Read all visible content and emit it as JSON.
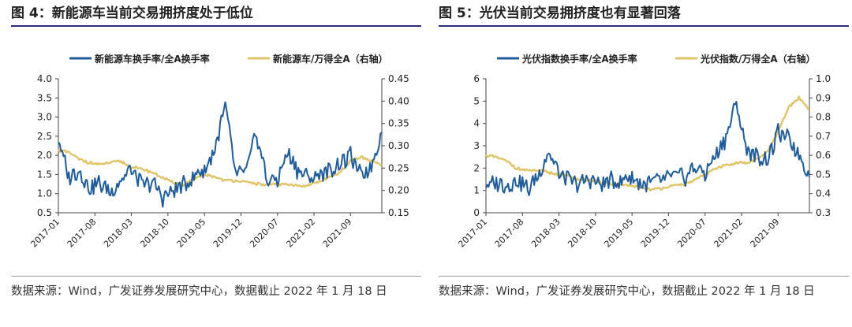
{
  "charts": [
    {
      "title": "图 4：新能源车当前交易拥挤度处于低位",
      "source": "数据来源：Wind，广发证券发展研究中心，数据截止 2022 年 1 月 18 日",
      "chart_data": {
        "type": "line",
        "title": "图 4：新能源车当前交易拥挤度处于低位",
        "xlabel": "",
        "ylabel": "",
        "y2label": "",
        "x_ticks": [
          "2017-01",
          "2017-08",
          "2018-03",
          "2018-10",
          "2019-05",
          "2019-12",
          "2020-07",
          "2021-02",
          "2021-09"
        ],
        "ylim": [
          0.5,
          4.0
        ],
        "y_ticks": [
          0.5,
          1.0,
          1.5,
          2.0,
          2.5,
          3.0,
          3.5,
          4.0
        ],
        "y2lim": [
          0.15,
          0.45
        ],
        "y2_ticks": [
          0.15,
          0.2,
          0.25,
          0.3,
          0.35,
          0.4,
          0.45
        ],
        "series": [
          {
            "name": "新能源车换手率/全A换手率",
            "axis": "left",
            "color": "#1f5c99",
            "t": [
              0,
              2,
              4,
              6,
              8,
              10,
              12,
              14,
              16,
              18,
              20,
              22,
              24,
              26,
              28,
              30,
              32,
              34,
              36,
              38,
              40,
              42,
              44,
              46,
              48,
              50,
              52,
              54,
              56,
              58,
              60,
              62
            ],
            "values": [
              2.4,
              1.4,
              1.6,
              1.1,
              1.3,
              1.0,
              1.4,
              1.6,
              1.2,
              1.3,
              0.9,
              1.1,
              1.2,
              1.5,
              1.6,
              2.2,
              3.3,
              1.5,
              1.6,
              2.6,
              1.3,
              1.4,
              2.1,
              1.6,
              1.4,
              1.5,
              1.6,
              1.8,
              2.0,
              1.4,
              1.7,
              2.6
            ]
          },
          {
            "name": "新能源车/万得全A（右轴）",
            "axis": "right",
            "color": "#e0c468",
            "t": [
              0,
              2,
              4,
              6,
              8,
              10,
              12,
              14,
              16,
              18,
              20,
              22,
              24,
              26,
              28,
              30,
              32,
              34,
              36,
              38,
              40,
              42,
              44,
              46,
              48,
              50,
              52,
              54,
              56,
              58,
              60,
              62
            ],
            "values": [
              0.29,
              0.285,
              0.27,
              0.262,
              0.258,
              0.262,
              0.265,
              0.252,
              0.248,
              0.24,
              0.228,
              0.218,
              0.212,
              0.225,
              0.235,
              0.23,
              0.222,
              0.222,
              0.218,
              0.215,
              0.212,
              0.214,
              0.213,
              0.21,
              0.212,
              0.22,
              0.23,
              0.24,
              0.265,
              0.275,
              0.265,
              0.258
            ]
          }
        ]
      }
    },
    {
      "title": "图 5：光伏当前交易拥挤度也有显著回落",
      "source": "数据来源：Wind，广发证券发展研究中心，数据截止 2022 年 1 月 18 日",
      "chart_data": {
        "type": "line",
        "title": "图 5：光伏当前交易拥挤度也有显著回落",
        "xlabel": "",
        "ylabel": "",
        "y2label": "",
        "x_ticks": [
          "2017-01",
          "2017-08",
          "2018-03",
          "2018-10",
          "2019-05",
          "2019-12",
          "2020-07",
          "2021-02",
          "2021-09"
        ],
        "ylim": [
          0,
          6
        ],
        "y_ticks": [
          0,
          1,
          2,
          3,
          4,
          5,
          6
        ],
        "y2lim": [
          0.3,
          1.0
        ],
        "y2_ticks": [
          0.3,
          0.4,
          0.5,
          0.6,
          0.7,
          0.8,
          0.9,
          1.0
        ],
        "series": [
          {
            "name": "光伏指数换手率/全A换手率",
            "axis": "left",
            "color": "#1f5c99",
            "t": [
              0,
              2,
              4,
              6,
              8,
              10,
              12,
              14,
              16,
              18,
              20,
              22,
              24,
              26,
              28,
              30,
              32,
              34,
              36,
              38,
              40,
              42,
              44,
              46,
              48,
              50,
              52,
              54,
              56,
              58,
              60,
              62
            ],
            "values": [
              1.2,
              1.3,
              1.2,
              1.4,
              1.1,
              1.6,
              2.8,
              1.7,
              1.4,
              1.3,
              1.5,
              1.3,
              1.4,
              1.5,
              1.6,
              1.3,
              1.4,
              1.5,
              1.7,
              1.6,
              2.0,
              1.8,
              2.6,
              3.4,
              4.9,
              2.8,
              2.5,
              2.4,
              3.6,
              3.2,
              2.6,
              1.6
            ]
          },
          {
            "name": "光伏指数/万得全A（右轴）",
            "axis": "right",
            "color": "#e0c468",
            "t": [
              0,
              2,
              4,
              6,
              8,
              10,
              12,
              14,
              16,
              18,
              20,
              22,
              24,
              26,
              28,
              30,
              32,
              34,
              36,
              38,
              40,
              42,
              44,
              46,
              48,
              50,
              52,
              54,
              56,
              58,
              60,
              62
            ],
            "values": [
              0.6,
              0.59,
              0.57,
              0.53,
              0.52,
              0.52,
              0.51,
              0.5,
              0.49,
              0.47,
              0.47,
              0.46,
              0.45,
              0.445,
              0.44,
              0.43,
              0.42,
              0.43,
              0.44,
              0.45,
              0.47,
              0.5,
              0.53,
              0.55,
              0.56,
              0.56,
              0.58,
              0.62,
              0.72,
              0.85,
              0.9,
              0.84
            ]
          }
        ]
      }
    }
  ]
}
